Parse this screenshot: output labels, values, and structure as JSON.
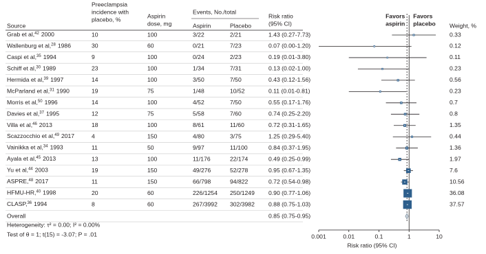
{
  "chart_data": {
    "type": "forest",
    "header": {
      "source": "Source",
      "incidence": [
        "Preeclampsia",
        "incidence with",
        "placebo, %"
      ],
      "dose": [
        "Aspirin",
        "dose, mg"
      ],
      "events": "Events, No./total",
      "aspirin": "Aspirin",
      "placebo": "Placebo",
      "rr": [
        "Risk ratio",
        "(95% CI)"
      ],
      "favors_left": [
        "Favors",
        "aspirin"
      ],
      "favors_right": [
        "Favors",
        "placebo"
      ],
      "weight": "Weight, %"
    },
    "rows": [
      {
        "name": "Grab et al,",
        "ref": "42",
        "year": "2000",
        "incidence": 10,
        "dose": 100,
        "aspirin": "3/22",
        "placebo": "2/21",
        "rr": 1.43,
        "lo": 0.27,
        "hi": 7.73,
        "label": "1.43 (0.27-7.73)",
        "weight": 0.33
      },
      {
        "name": "Wallenburg et al,",
        "ref": "28",
        "year": "1986",
        "incidence": 30,
        "dose": 60,
        "aspirin": "0/21",
        "placebo": "7/23",
        "rr": 0.07,
        "lo": 0.0,
        "hi": 1.2,
        "label": "0.07 (0.00-1.20)",
        "weight": 0.12
      },
      {
        "name": "Caspi et al,",
        "ref": "35",
        "year": "1994",
        "incidence": 9,
        "dose": 100,
        "aspirin": "0/24",
        "placebo": "2/23",
        "rr": 0.19,
        "lo": 0.01,
        "hi": 3.8,
        "label": "0.19 (0.01-3.80)",
        "weight": 0.11
      },
      {
        "name": "Schiff et al,",
        "ref": "30",
        "year": "1989",
        "incidence": 23,
        "dose": 100,
        "aspirin": "1/34",
        "placebo": "7/31",
        "rr": 0.13,
        "lo": 0.02,
        "hi": 1.0,
        "label": "0.13 (0.02-1.00)",
        "weight": 0.23
      },
      {
        "name": "Hermida et al,",
        "ref": "39",
        "year": "1997",
        "incidence": 14,
        "dose": 100,
        "aspirin": "3/50",
        "placebo": "7/50",
        "rr": 0.43,
        "lo": 0.12,
        "hi": 1.56,
        "label": "0.43 (0.12-1.56)",
        "weight": 0.56
      },
      {
        "name": "McParland et al,",
        "ref": "31",
        "year": "1990",
        "incidence": 19,
        "dose": 75,
        "aspirin": "1/48",
        "placebo": "10/52",
        "rr": 0.11,
        "lo": 0.01,
        "hi": 0.81,
        "label": "0.11 (0.01-0.81)",
        "weight": 0.23
      },
      {
        "name": "Morris et al,",
        "ref": "50",
        "year": "1996",
        "incidence": 14,
        "dose": 100,
        "aspirin": "4/52",
        "placebo": "7/50",
        "rr": 0.55,
        "lo": 0.17,
        "hi": 1.76,
        "label": "0.55 (0.17-1.76)",
        "weight": 0.7
      },
      {
        "name": "Davies et al,",
        "ref": "37",
        "year": "1995",
        "incidence": 12,
        "dose": 75,
        "aspirin": "5/58",
        "placebo": "7/60",
        "rr": 0.74,
        "lo": 0.25,
        "hi": 2.2,
        "label": "0.74 (0.25-2.20)",
        "weight": 0.8
      },
      {
        "name": "Villa et al,",
        "ref": "46",
        "year": "2013",
        "incidence": 18,
        "dose": 100,
        "aspirin": "8/61",
        "placebo": "11/60",
        "rr": 0.72,
        "lo": 0.31,
        "hi": 1.65,
        "label": "0.72 (0.31-1.65)",
        "weight": 1.35
      },
      {
        "name": "Scazzocchio et al,",
        "ref": "49",
        "year": "2017",
        "incidence": 4,
        "dose": 150,
        "aspirin": "4/80",
        "placebo": "3/75",
        "rr": 1.25,
        "lo": 0.29,
        "hi": 5.4,
        "label": "1.25 (0.29-5.40)",
        "weight": 0.44
      },
      {
        "name": "Vainikka et al,",
        "ref": "34",
        "year": "1993",
        "incidence": 11,
        "dose": 50,
        "aspirin": "9/97",
        "placebo": "11/100",
        "rr": 0.84,
        "lo": 0.37,
        "hi": 1.95,
        "label": "0.84 (0.37-1.95)",
        "weight": 1.36
      },
      {
        "name": "Ayala et al,",
        "ref": "45",
        "year": "2013",
        "incidence": 13,
        "dose": 100,
        "aspirin": "11/176",
        "placebo": "22/174",
        "rr": 0.49,
        "lo": 0.25,
        "hi": 0.99,
        "label": "0.49 (0.25-0.99)",
        "weight": 1.97
      },
      {
        "name": "Yu et al,",
        "ref": "44",
        "year": "2003",
        "incidence": 19,
        "dose": 150,
        "aspirin": "49/276",
        "placebo": "52/278",
        "rr": 0.95,
        "lo": 0.67,
        "hi": 1.35,
        "label": "0.95 (0.67-1.35)",
        "weight": 7.6
      },
      {
        "name": "ASPRE,",
        "ref": "48",
        "year": "2017",
        "incidence": 11,
        "dose": 150,
        "aspirin": "66/798",
        "placebo": "94/822",
        "rr": 0.72,
        "lo": 0.54,
        "hi": 0.98,
        "label": "0.72 (0.54-0.98)",
        "weight": 10.56
      },
      {
        "name": "HFMU-HR,",
        "ref": "40",
        "year": "1998",
        "incidence": 20,
        "dose": 60,
        "aspirin": "226/1254",
        "placebo": "250/1249",
        "rr": 0.9,
        "lo": 0.77,
        "hi": 1.06,
        "label": "0.90 (0.77-1.06)",
        "weight": 36.08
      },
      {
        "name": "CLASP,",
        "ref": "36",
        "year": "1994",
        "incidence": 8,
        "dose": 60,
        "aspirin": "267/3992",
        "placebo": "302/3982",
        "rr": 0.88,
        "lo": 0.75,
        "hi": 1.03,
        "label": "0.88 (0.75-1.03)",
        "weight": 37.57
      }
    ],
    "overall": {
      "name": "Overall",
      "rr": 0.85,
      "lo": 0.75,
      "hi": 0.95,
      "label": "0.85 (0.75-0.95)"
    },
    "heterogeneity": "Heterogeneity: τ² = 0.00; I² = 0.00%",
    "test": "Test of θ = 1; t(15) = -3.07; P = .01",
    "xlabel": "Risk ratio (95% CI)",
    "xlim": [
      0.001,
      10
    ],
    "xticks": [
      0.001,
      0.01,
      0.1,
      1,
      10
    ],
    "log_x": true,
    "null_line": 1,
    "color": "#2e5f8c"
  }
}
